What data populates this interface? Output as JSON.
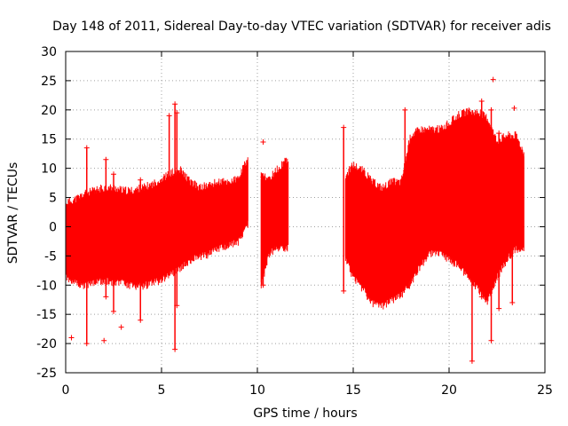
{
  "chart_data": {
    "type": "scatter",
    "title": "Day 148 of 2011, Sidereal Day-to-day VTEC variation (SDTVAR) for receiver adis",
    "xlabel": "GPS time / hours",
    "ylabel": "SDTVAR / TECUs",
    "xlim": [
      0,
      25
    ],
    "ylim": [
      -25,
      30
    ],
    "x_ticks": [
      0,
      5,
      10,
      15,
      20,
      25
    ],
    "y_ticks": [
      -25,
      -20,
      -15,
      -10,
      -5,
      0,
      5,
      10,
      15,
      20,
      25,
      30
    ],
    "grid": true,
    "marker": "+",
    "series_color": "#ff0000",
    "series": [
      {
        "name": "SDTVAR",
        "envelope": {
          "description": "dense band of points bounded by upper and lower envelopes",
          "segments": [
            {
              "x": [
                0,
                0.5,
                1,
                1.5,
                2,
                2.5,
                3,
                3.5,
                4,
                4.5,
                5,
                5.5,
                6,
                6.5,
                7,
                7.5,
                8,
                8.5,
                9,
                9.5
              ],
              "upper": [
                3.5,
                4,
                5,
                5.5,
                6,
                6,
                5.5,
                5.5,
                6,
                6.5,
                7.5,
                8.5,
                9,
                7,
                6,
                6.5,
                7,
                7,
                7.5,
                11
              ],
              "lower": [
                -8,
                -9,
                -9.5,
                -9,
                -8.5,
                -9,
                -9,
                -9.5,
                -9.5,
                -9,
                -8.5,
                -7.5,
                -6.5,
                -5,
                -4.5,
                -4,
                -3,
                -2.5,
                -2,
                1
              ]
            },
            {
              "x": [
                10.2,
                10.6,
                11,
                11.6
              ],
              "upper": [
                8,
                7.5,
                9,
                11
              ],
              "lower": [
                -9.5,
                -4,
                -3,
                -3
              ]
            },
            {
              "x": [
                14.6,
                15,
                15.5,
                16,
                16.5,
                17,
                17.5,
                18,
                18.5,
                19,
                19.5,
                20,
                20.5,
                21,
                21.5,
                22,
                22.5,
                23,
                23.5,
                23.9
              ],
              "upper": [
                8,
                10,
                9,
                7,
                6,
                7,
                7,
                15,
                16,
                16,
                16,
                17,
                18.5,
                19,
                19,
                18,
                14,
                15,
                15,
                12
              ],
              "lower": [
                -5,
                -8,
                -10,
                -12.5,
                -13,
                -12,
                -11,
                -9,
                -6,
                -4,
                -4,
                -5,
                -6,
                -8,
                -10,
                -12,
                -8,
                -5,
                -3,
                -3.5
              ]
            }
          ]
        },
        "spikes": [
          {
            "x": 1.1,
            "y_min": -20,
            "y_max": 13.5
          },
          {
            "x": 2.1,
            "y_min": -12,
            "y_max": 11.5
          },
          {
            "x": 2.5,
            "y_min": -14.5,
            "y_max": 9
          },
          {
            "x": 3.9,
            "y_min": -16,
            "y_max": 8
          },
          {
            "x": 5.4,
            "y_min": -6,
            "y_max": 19
          },
          {
            "x": 5.7,
            "y_min": -21,
            "y_max": 21
          },
          {
            "x": 5.8,
            "y_min": -13.5,
            "y_max": 19.5
          },
          {
            "x": 10.3,
            "y_min": -10,
            "y_max": 8.5
          },
          {
            "x": 14.5,
            "y_min": -11,
            "y_max": 17
          },
          {
            "x": 17.7,
            "y_min": -9,
            "y_max": 20
          },
          {
            "x": 21.2,
            "y_min": -23,
            "y_max": 10
          },
          {
            "x": 21.7,
            "y_min": -12,
            "y_max": 21.5
          },
          {
            "x": 22.2,
            "y_min": -19.5,
            "y_max": 20
          },
          {
            "x": 22.6,
            "y_min": -14,
            "y_max": 16
          },
          {
            "x": 23.3,
            "y_min": -13,
            "y_max": 15
          }
        ],
        "outliers": [
          {
            "x": 0.3,
            "y": -19
          },
          {
            "x": 2.0,
            "y": -19.5
          },
          {
            "x": 2.9,
            "y": -17.2
          },
          {
            "x": 10.3,
            "y": 14.5
          },
          {
            "x": 22.3,
            "y": 25.2
          },
          {
            "x": 23.4,
            "y": 20.3
          }
        ]
      }
    ]
  }
}
